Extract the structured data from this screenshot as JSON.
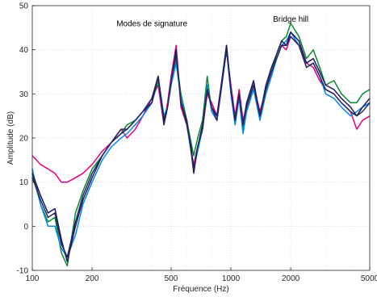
{
  "chart_data": {
    "type": "line",
    "title": "",
    "xlabel": "Fréquence (Hz)",
    "ylabel": "Amplitude (dB)",
    "xscale": "log",
    "xlim": [
      100,
      5000
    ],
    "ylim": [
      -10,
      50
    ],
    "x_ticks": [
      100,
      200,
      500,
      1000,
      2000,
      5000
    ],
    "y_ticks": [
      -10,
      0,
      10,
      20,
      30,
      40,
      50
    ],
    "x_tick_labels": [
      "100",
      "200",
      "500",
      "1000",
      "2000",
      "5000"
    ],
    "y_tick_labels": [
      "-10",
      "0",
      "10",
      "20",
      "30",
      "40",
      "50"
    ],
    "grid": true,
    "annotations": [
      {
        "text": "Modes de signature",
        "x": 400,
        "y": 46
      },
      {
        "text": "Bridge hill",
        "x": 2000,
        "y": 47
      }
    ],
    "x": [
      100,
      110,
      120,
      130,
      140,
      150,
      165,
      180,
      200,
      225,
      250,
      280,
      300,
      330,
      360,
      400,
      430,
      460,
      480,
      500,
      530,
      560,
      600,
      630,
      650,
      680,
      720,
      760,
      800,
      850,
      900,
      950,
      1000,
      1050,
      1100,
      1150,
      1200,
      1300,
      1400,
      1500,
      1600,
      1700,
      1800,
      1900,
      2000,
      2200,
      2400,
      2600,
      2800,
      3000,
      3300,
      3600,
      4000,
      4300,
      4600,
      5000
    ],
    "series": [
      {
        "color": "#e4007c",
        "values": [
          16,
          14,
          13,
          12,
          10,
          10,
          11,
          12,
          14,
          17,
          19,
          22,
          20,
          22,
          25,
          29,
          32,
          23,
          28,
          34,
          41,
          27,
          23,
          17,
          14,
          18,
          22,
          30,
          28,
          25,
          33,
          40,
          32,
          25,
          31,
          24,
          27,
          32,
          26,
          31,
          35,
          38,
          41,
          40,
          43,
          41,
          37,
          36,
          33,
          31,
          30,
          28,
          26,
          22,
          24,
          25
        ]
      },
      {
        "color": "#0a8a2e",
        "values": [
          12,
          5,
          1,
          2,
          -6,
          -9,
          3,
          8,
          13,
          16,
          19,
          21,
          23,
          24,
          26,
          28,
          33,
          24,
          27,
          33,
          38,
          30,
          24,
          19,
          16,
          20,
          24,
          34,
          26,
          24,
          33,
          41,
          31,
          23,
          30,
          22,
          27,
          32,
          25,
          31,
          35,
          39,
          42,
          43,
          46,
          43,
          38,
          40,
          36,
          32,
          33,
          30,
          28,
          28,
          30,
          31
        ]
      },
      {
        "color": "#0088ee",
        "values": [
          13,
          5,
          0,
          0,
          -5,
          -7,
          -2,
          5,
          10,
          15,
          18,
          20,
          21,
          23,
          25,
          28,
          34,
          25,
          27,
          32,
          37,
          29,
          23,
          17,
          13,
          17,
          22,
          32,
          26,
          24,
          32,
          40,
          30,
          23,
          29,
          21,
          26,
          31,
          24,
          30,
          34,
          38,
          41,
          42,
          44,
          41,
          36,
          37,
          34,
          30,
          29,
          27,
          25,
          26,
          27,
          28
        ]
      },
      {
        "color": "#1a1a60",
        "values": [
          12,
          7,
          3,
          4,
          -3,
          -8,
          0,
          6,
          11,
          16,
          19,
          21,
          22,
          24,
          26,
          28,
          34,
          24,
          27,
          33,
          40,
          28,
          24,
          17,
          12,
          18,
          23,
          31,
          27,
          25,
          33,
          41,
          31,
          24,
          30,
          23,
          28,
          33,
          25,
          32,
          36,
          39,
          42,
          41,
          44,
          42,
          37,
          38,
          35,
          32,
          31,
          29,
          27,
          25,
          27,
          29
        ]
      },
      {
        "color": "#27275e",
        "values": [
          11,
          6,
          2,
          3,
          -4,
          -7,
          1,
          7,
          12,
          16,
          19,
          22,
          22,
          24,
          26,
          29,
          34,
          23,
          27,
          33,
          39,
          28,
          23,
          18,
          13,
          18,
          22,
          31,
          27,
          24,
          32,
          40,
          31,
          24,
          30,
          23,
          27,
          32,
          25,
          31,
          35,
          38,
          41,
          41,
          43,
          41,
          36,
          37,
          34,
          31,
          30,
          28,
          26,
          25,
          26,
          28
        ]
      }
    ]
  }
}
